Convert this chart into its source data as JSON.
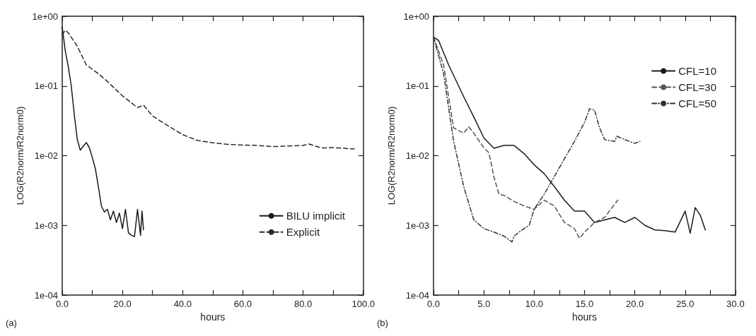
{
  "chart_data": [
    {
      "type": "line",
      "xlabel": "hours",
      "ylabel": "LOG(R2norm/R2norm0)",
      "annotations": [
        "(a)"
      ],
      "log": "y",
      "grid": false,
      "legend": "right",
      "marker": "none",
      "xlim": [
        0,
        100
      ],
      "xticks": [
        {
          "value": 0,
          "label": "0.0"
        },
        {
          "value": 10,
          "label": null
        },
        {
          "value": 20,
          "label": "20.0"
        },
        {
          "value": 30,
          "label": null
        },
        {
          "value": 40,
          "label": "40.0"
        },
        {
          "value": 50,
          "label": null
        },
        {
          "value": 60,
          "label": "60.0"
        },
        {
          "value": 70,
          "label": null
        },
        {
          "value": 80,
          "label": "80.0"
        },
        {
          "value": 90,
          "label": null
        },
        {
          "value": 100,
          "label": "100.0"
        }
      ],
      "ylim": [
        0.0001,
        1
      ],
      "yticks": [
        {
          "value": 0.0001,
          "label": "1e-04"
        },
        {
          "value": 0.001,
          "label": "1e-03"
        },
        {
          "value": 0.01,
          "label": "1e-02"
        },
        {
          "value": 0.1,
          "label": "1e-01"
        },
        {
          "value": 1,
          "label": "1e+00"
        }
      ],
      "series": [
        {
          "name": "BILU implicit",
          "color": "#1a1a1a",
          "line_style": "solid",
          "x": [
            0,
            1,
            2,
            3,
            4,
            5,
            6,
            7,
            8,
            9,
            10,
            11,
            12,
            13,
            14,
            15,
            16,
            17,
            18,
            19,
            20,
            21,
            22,
            23,
            24,
            25,
            26,
            26.5,
            27
          ],
          "values": [
            0.7,
            0.32,
            0.19,
            0.1,
            0.039,
            0.017,
            0.012,
            0.0137,
            0.0154,
            0.013,
            0.0094,
            0.0065,
            0.0036,
            0.0019,
            0.00155,
            0.0017,
            0.0012,
            0.0016,
            0.0011,
            0.0015,
            0.0009,
            0.0017,
            0.00078,
            0.00072,
            0.00069,
            0.0017,
            0.00072,
            0.0016,
            0.00086
          ]
        },
        {
          "name": "Explicit",
          "color": "#2a2a2a",
          "line_style": "dashed",
          "x": [
            0,
            1,
            2,
            5,
            8,
            12,
            15,
            20,
            25,
            27,
            30,
            35,
            40,
            45,
            50,
            55,
            60,
            65,
            70,
            80,
            82,
            86,
            90,
            97
          ],
          "values": [
            0.54,
            0.63,
            0.58,
            0.37,
            0.2,
            0.15,
            0.116,
            0.072,
            0.049,
            0.053,
            0.037,
            0.027,
            0.02,
            0.0165,
            0.0153,
            0.0145,
            0.0142,
            0.014,
            0.0135,
            0.014,
            0.0147,
            0.0129,
            0.013,
            0.0125
          ]
        }
      ]
    },
    {
      "type": "line",
      "xlabel": "hours",
      "ylabel": "LOG(R2norm/R2norm0)",
      "annotations": [
        "(b)"
      ],
      "log": "y",
      "grid": false,
      "legend": "top right",
      "marker": "none",
      "xlim": [
        0,
        30
      ],
      "xticks": [
        {
          "value": 0,
          "label": "0.0"
        },
        {
          "value": 2.5,
          "label": null
        },
        {
          "value": 5,
          "label": "5.0"
        },
        {
          "value": 7.5,
          "label": null
        },
        {
          "value": 10,
          "label": "10.0"
        },
        {
          "value": 12.5,
          "label": null
        },
        {
          "value": 15,
          "label": "15.0"
        },
        {
          "value": 17.5,
          "label": null
        },
        {
          "value": 20,
          "label": "20.0"
        },
        {
          "value": 22.5,
          "label": null
        },
        {
          "value": 25,
          "label": "25.0"
        },
        {
          "value": 27.5,
          "label": null
        },
        {
          "value": 30,
          "label": "30.0"
        }
      ],
      "ylim": [
        0.0001,
        1
      ],
      "yticks": [
        {
          "value": 0.0001,
          "label": "1e-04"
        },
        {
          "value": 0.001,
          "label": "1e-03"
        },
        {
          "value": 0.01,
          "label": "1e-02"
        },
        {
          "value": 0.1,
          "label": "1e-01"
        },
        {
          "value": 1,
          "label": "1e+00"
        }
      ],
      "series": [
        {
          "name": "CFL=10",
          "color": "#1a1a1a",
          "line_style": "solid",
          "x": [
            0,
            0.5,
            1.5,
            3,
            4,
            5,
            6,
            7,
            8,
            9,
            10,
            11,
            12,
            13,
            14,
            15,
            16,
            17,
            18,
            19,
            20,
            21,
            22,
            23,
            24,
            25,
            25.5,
            26,
            26.5,
            27
          ],
          "values": [
            0.5,
            0.45,
            0.2,
            0.07,
            0.036,
            0.018,
            0.0128,
            0.014,
            0.014,
            0.0107,
            0.0074,
            0.0055,
            0.0036,
            0.0023,
            0.0016,
            0.0016,
            0.0011,
            0.0012,
            0.0013,
            0.0011,
            0.0013,
            0.001,
            0.00086,
            0.00084,
            0.0008,
            0.0016,
            0.00077,
            0.0018,
            0.0014,
            0.00086
          ]
        },
        {
          "name": "CFL=30",
          "color": "#555555",
          "line_style": "dashed",
          "x": [
            0,
            1,
            2,
            3,
            3.5,
            4,
            5,
            5.5,
            6,
            6.5,
            7,
            8,
            9,
            10,
            11,
            12,
            13,
            14,
            14.5,
            15,
            16,
            17,
            18.3
          ],
          "values": [
            0.5,
            0.2,
            0.025,
            0.021,
            0.026,
            0.021,
            0.013,
            0.011,
            0.005,
            0.0028,
            0.0027,
            0.0022,
            0.0019,
            0.0017,
            0.0023,
            0.0019,
            0.0011,
            0.0009,
            0.00065,
            0.0008,
            0.0011,
            0.0013,
            0.0023
          ]
        },
        {
          "name": "CFL=50",
          "color": "#333333",
          "line_style": "dotted",
          "x": [
            0,
            1,
            2,
            3,
            4,
            5,
            6,
            7,
            7.8,
            8,
            8.5,
            9,
            9.5,
            10,
            11,
            12,
            13,
            14,
            15,
            15.5,
            16,
            16.5,
            17,
            18,
            18.2,
            19,
            20,
            20.5
          ],
          "values": [
            0.5,
            0.15,
            0.016,
            0.0036,
            0.0012,
            0.0009,
            0.0008,
            0.0007,
            0.00058,
            0.0007,
            0.0008,
            0.0009,
            0.001,
            0.0017,
            0.0028,
            0.005,
            0.009,
            0.016,
            0.03,
            0.047,
            0.045,
            0.025,
            0.017,
            0.016,
            0.019,
            0.017,
            0.015,
            0.016
          ]
        }
      ]
    }
  ]
}
